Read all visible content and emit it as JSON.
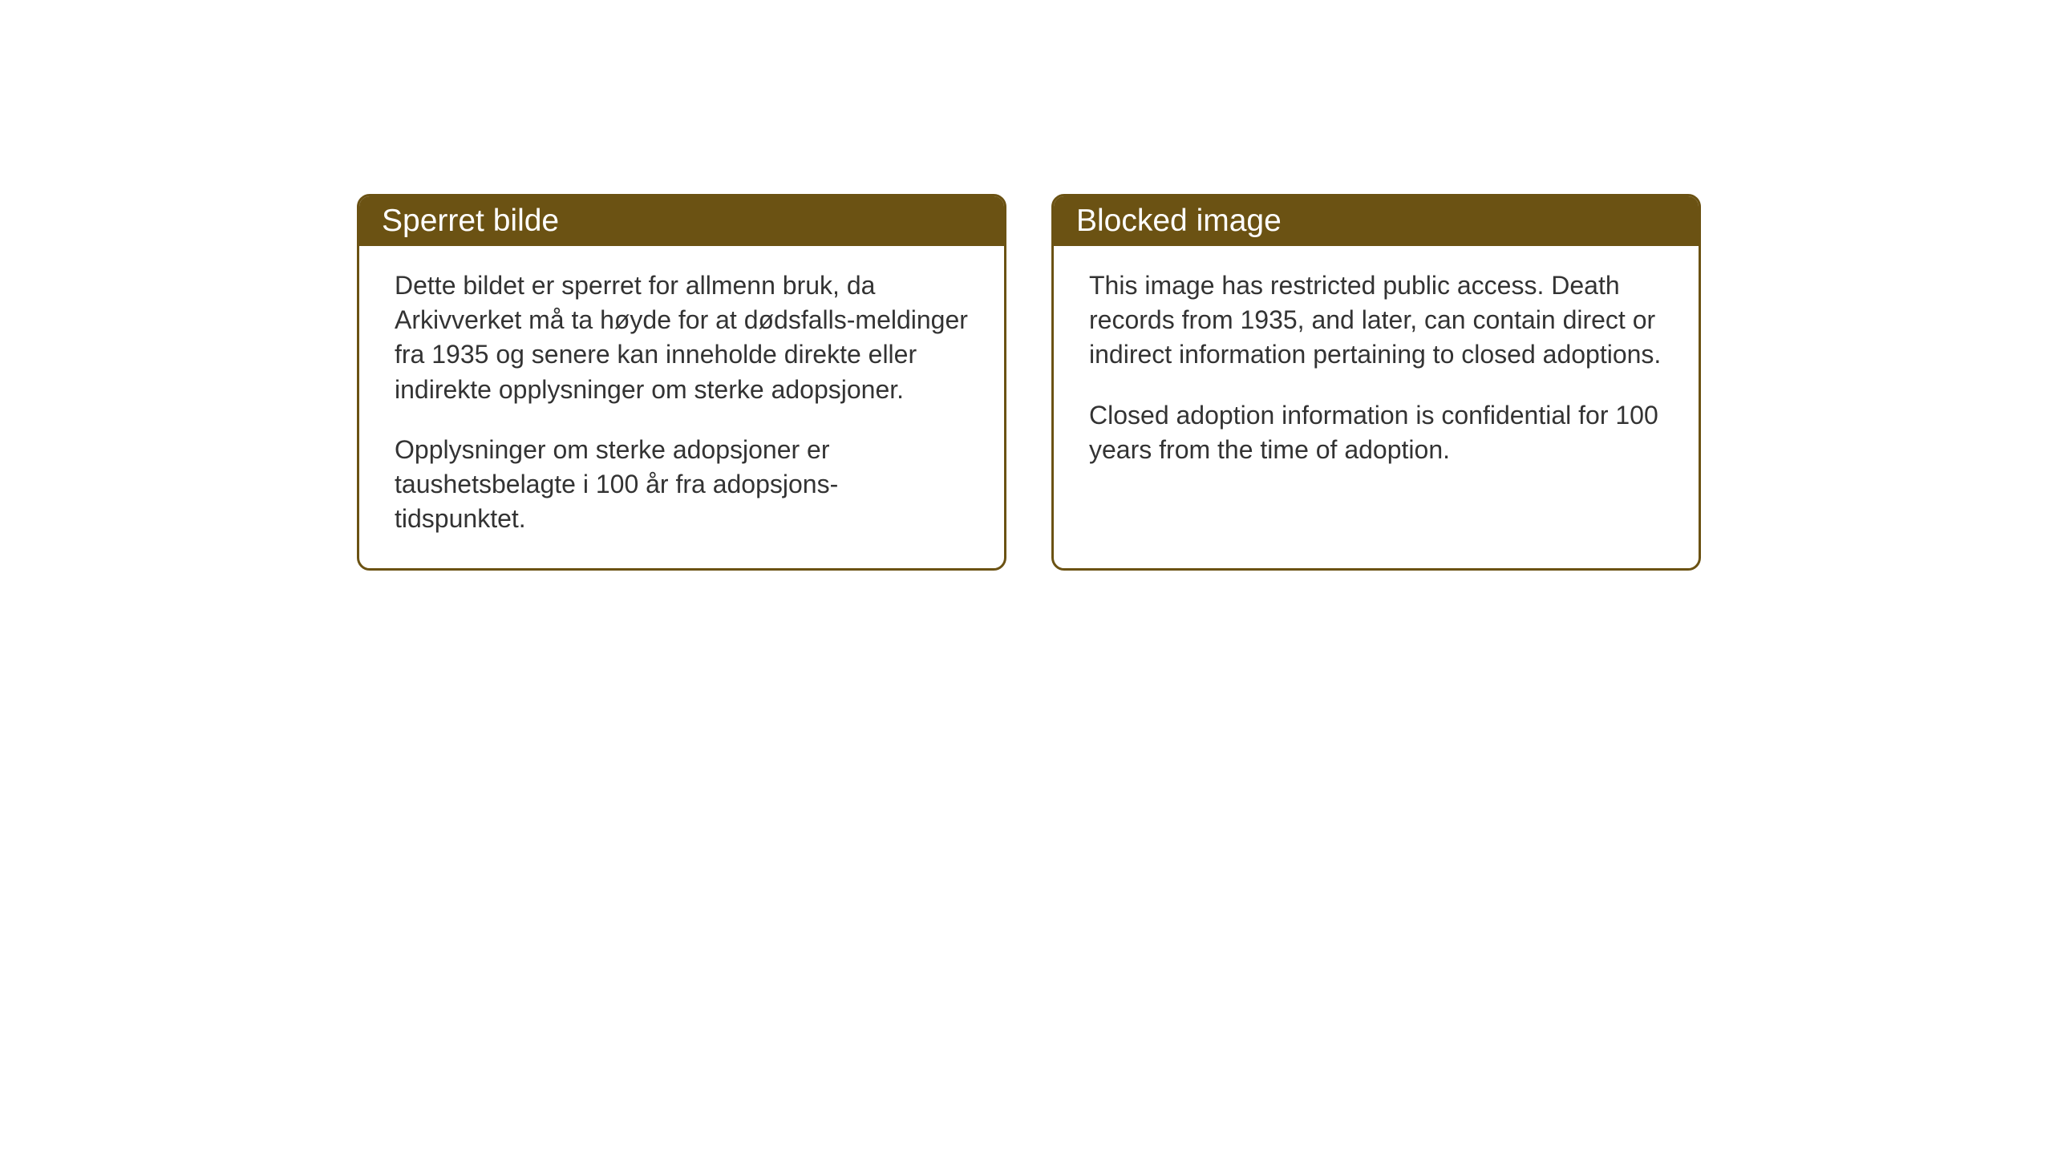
{
  "cards": {
    "norwegian": {
      "title": "Sperret bilde",
      "paragraph1": "Dette bildet er sperret for allmenn bruk, da Arkivverket må ta høyde for at dødsfalls-meldinger fra 1935 og senere kan inneholde direkte eller indirekte opplysninger om sterke adopsjoner.",
      "paragraph2": "Opplysninger om sterke adopsjoner er taushetsbelagte i 100 år fra adopsjons-tidspunktet."
    },
    "english": {
      "title": "Blocked image",
      "paragraph1": "This image has restricted public access. Death records from 1935, and later, can contain direct or indirect information pertaining to closed adoptions.",
      "paragraph2": "Closed adoption information is confidential for 100 years from the time of adoption."
    }
  },
  "styling": {
    "header_background_color": "#6b5213",
    "header_text_color": "#ffffff",
    "border_color": "#6b5213",
    "body_text_color": "#333333",
    "card_background_color": "#ffffff",
    "page_background_color": "#ffffff",
    "header_fontsize": 39,
    "body_fontsize": 32,
    "border_radius": 16,
    "border_width": 3
  }
}
